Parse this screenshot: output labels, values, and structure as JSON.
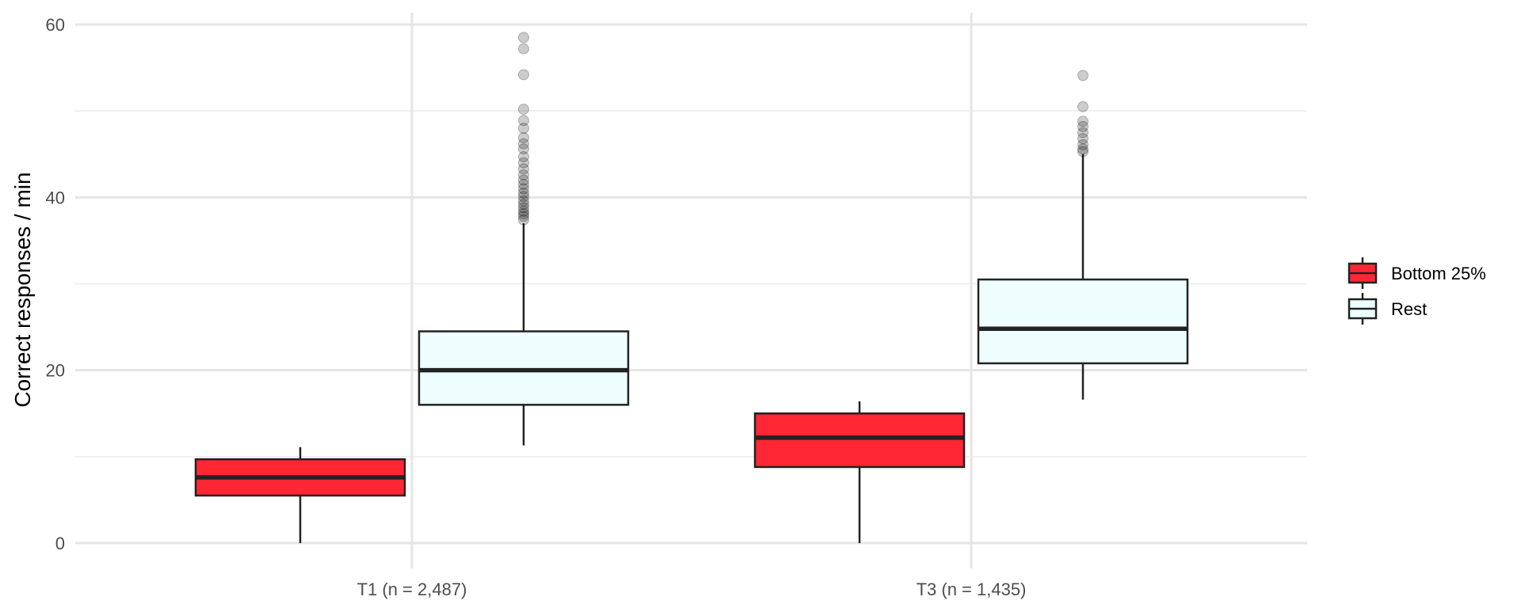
{
  "chart_data": {
    "type": "box",
    "xlabel": "",
    "ylabel": "Correct responses / min",
    "ylim": [
      0,
      60
    ],
    "y_ticks": [
      0,
      20,
      40,
      60
    ],
    "y_tick_labels": [
      "0",
      "20",
      "40",
      "60"
    ],
    "grid": true,
    "legend_position": "right",
    "categories": [
      "T1 (n = 2,487)",
      "T3 (n = 1,435)"
    ],
    "series": [
      {
        "name": "Bottom 25%",
        "color": "#FF2733",
        "boxes": [
          {
            "category": "T1 (n = 2,487)",
            "whisker_low": 0,
            "q1": 5.5,
            "median": 7.6,
            "q3": 9.7,
            "whisker_high": 11.1,
            "outliers": []
          },
          {
            "category": "T3 (n = 1,435)",
            "whisker_low": 0,
            "q1": 8.8,
            "median": 12.2,
            "q3": 15.0,
            "whisker_high": 16.4,
            "outliers": []
          }
        ]
      },
      {
        "name": "Rest",
        "color": "#EEFEFE",
        "boxes": [
          {
            "category": "T1 (n = 2,487)",
            "whisker_low": 11.3,
            "q1": 16.0,
            "median": 20.0,
            "q3": 24.5,
            "whisker_high": 37.0,
            "outliers": [
              37.4,
              37.8,
              38.1,
              38.4,
              38.8,
              39.2,
              39.6,
              40.1,
              40.5,
              41.0,
              41.5,
              42.0,
              42.6,
              43.3,
              44.0,
              44.7,
              45.6,
              46.2,
              46.9,
              48.0,
              48.9,
              50.2,
              54.2,
              57.2,
              58.5
            ]
          },
          {
            "category": "T3 (n = 1,435)",
            "whisker_low": 16.6,
            "q1": 20.8,
            "median": 24.8,
            "q3": 30.5,
            "whisker_high": 45.0,
            "outliers": [
              45.3,
              45.6,
              46.1,
              46.8,
              47.5,
              48.2,
              48.8,
              50.5,
              54.1
            ]
          }
        ]
      }
    ]
  }
}
